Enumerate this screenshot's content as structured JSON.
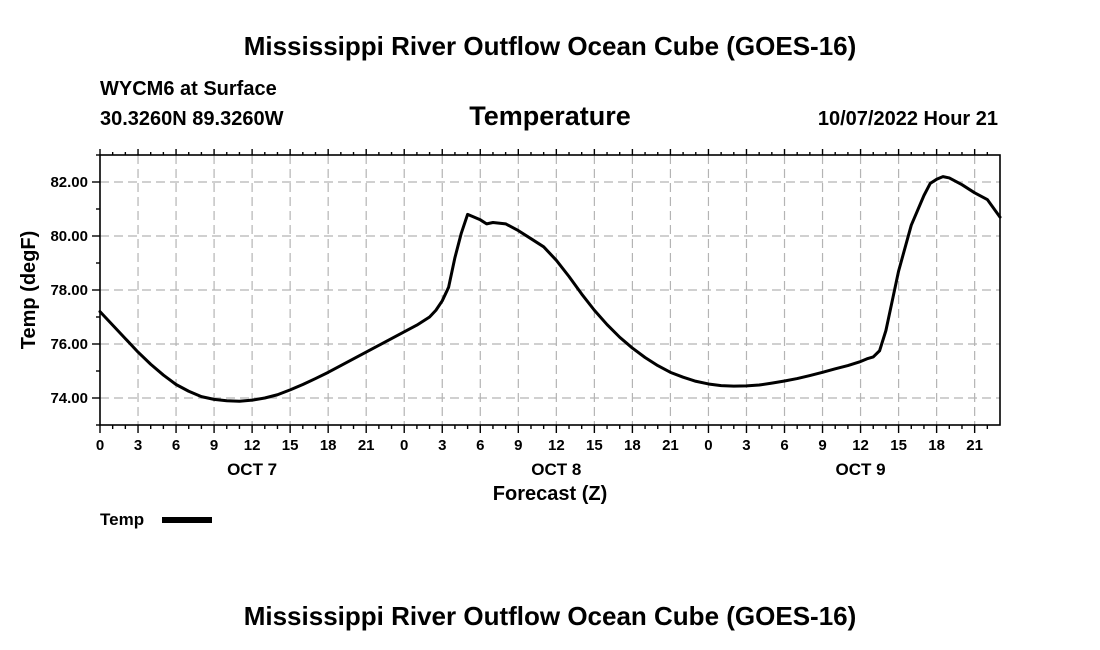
{
  "header": {
    "title": "Mississippi River Outflow Ocean Cube (GOES-16)",
    "station": "WYCM6 at Surface",
    "coords": "30.3260N  89.3260W",
    "variable": "Temperature",
    "datetime": "10/07/2022 Hour 21"
  },
  "footer": {
    "title": "Mississippi River Outflow Ocean Cube (GOES-16)"
  },
  "chart_data": {
    "type": "line",
    "title": "Temperature",
    "xlabel": "Forecast (Z)",
    "ylabel": "Temp (degF)",
    "xlim": [
      0,
      71
    ],
    "ylim": [
      73.0,
      83.0
    ],
    "grid": true,
    "y_ticks": [
      74,
      76,
      78,
      80,
      82
    ],
    "y_tick_labels": [
      "74.00",
      "76.00",
      "78.00",
      "80.00",
      "82.00"
    ],
    "x_ticks": [
      0,
      3,
      6,
      9,
      12,
      15,
      18,
      21,
      24,
      27,
      30,
      33,
      36,
      39,
      42,
      45,
      48,
      51,
      54,
      57,
      60,
      63,
      66,
      69
    ],
    "x_tick_labels": [
      "0",
      "3",
      "6",
      "9",
      "12",
      "15",
      "18",
      "21",
      "0",
      "3",
      "6",
      "9",
      "12",
      "15",
      "18",
      "21",
      "0",
      "3",
      "6",
      "9",
      "12",
      "15",
      "18",
      "21"
    ],
    "x_minor_ticks": [
      1,
      2,
      4,
      5,
      7,
      8,
      10,
      11,
      13,
      14,
      16,
      17,
      19,
      20,
      22,
      23,
      25,
      26,
      28,
      29,
      31,
      32,
      34,
      35,
      37,
      38,
      40,
      41,
      43,
      44,
      46,
      47,
      49,
      50,
      52,
      53,
      55,
      56,
      58,
      59,
      61,
      62,
      64,
      65,
      67,
      68,
      70
    ],
    "date_labels": [
      {
        "x": 12,
        "label": "OCT 7"
      },
      {
        "x": 36,
        "label": "OCT 8"
      },
      {
        "x": 60,
        "label": "OCT 9"
      }
    ],
    "legend": {
      "label": "Temp",
      "position": "bottom-left"
    },
    "series": [
      {
        "name": "Temp",
        "x": [
          0,
          1,
          2,
          3,
          4,
          5,
          6,
          7,
          8,
          9,
          10,
          11,
          12,
          13,
          14,
          15,
          16,
          17,
          18,
          19,
          20,
          21,
          22,
          23,
          24,
          25,
          26,
          26.5,
          27,
          27.5,
          28,
          28.5,
          29,
          30,
          30.5,
          31,
          32,
          33,
          34,
          35,
          36,
          37,
          38,
          39,
          40,
          41,
          42,
          43,
          44,
          45,
          46,
          47,
          48,
          49,
          50,
          51,
          52,
          53,
          54,
          55,
          56,
          57,
          58,
          59,
          60,
          60.5,
          61,
          61.5,
          62,
          63,
          64,
          65,
          65.5,
          66,
          66.5,
          67,
          68,
          69,
          70,
          71
        ],
        "values": [
          77.2,
          76.7,
          76.2,
          75.7,
          75.25,
          74.85,
          74.5,
          74.25,
          74.05,
          73.95,
          73.9,
          73.88,
          73.92,
          74.0,
          74.12,
          74.3,
          74.5,
          74.72,
          74.95,
          75.2,
          75.45,
          75.7,
          75.95,
          76.2,
          76.45,
          76.7,
          77.0,
          77.25,
          77.6,
          78.1,
          79.2,
          80.1,
          80.8,
          80.6,
          80.45,
          80.5,
          80.45,
          80.2,
          79.9,
          79.6,
          79.1,
          78.5,
          77.85,
          77.25,
          76.72,
          76.25,
          75.85,
          75.5,
          75.2,
          74.95,
          74.77,
          74.62,
          74.52,
          74.46,
          74.44,
          74.45,
          74.48,
          74.55,
          74.63,
          74.72,
          74.83,
          74.95,
          75.08,
          75.2,
          75.35,
          75.45,
          75.52,
          75.75,
          76.5,
          78.7,
          80.4,
          81.5,
          81.95,
          82.1,
          82.2,
          82.15,
          81.9,
          81.6,
          81.35,
          80.7
        ]
      }
    ]
  }
}
